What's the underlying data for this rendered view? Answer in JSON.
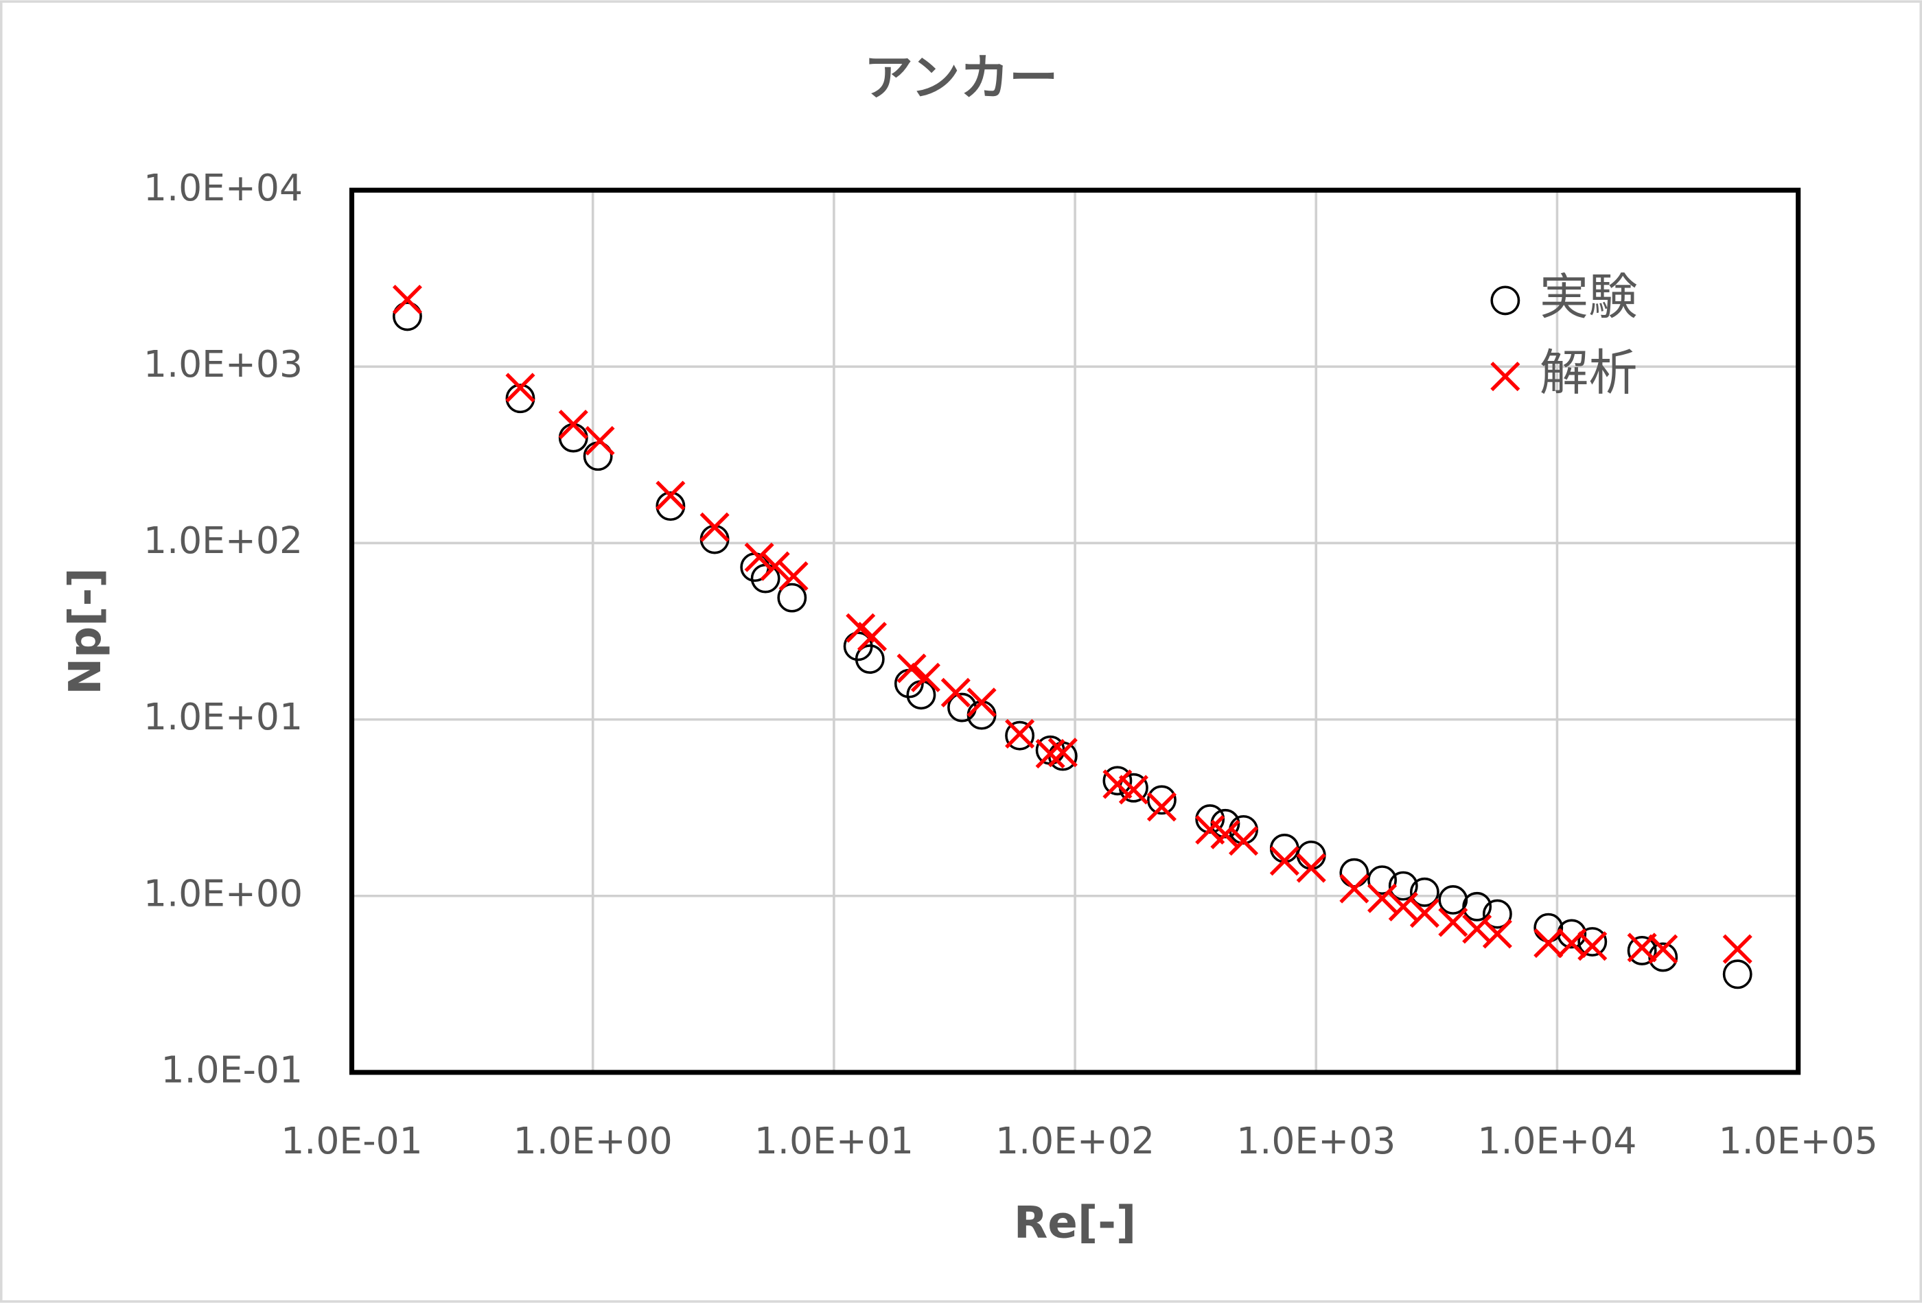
{
  "chart_data": {
    "type": "scatter",
    "title": "アンカー",
    "xlabel": "Re[-]",
    "ylabel": "Np[-]",
    "xscale": "log",
    "yscale": "log",
    "grid": true,
    "legend": "upper right",
    "xlim": [
      0.1,
      100000
    ],
    "ylim": [
      0.1,
      10000
    ],
    "xticks": [
      {
        "value": 0.1,
        "label": "1.0E-01"
      },
      {
        "value": 1,
        "label": "1.0E+00"
      },
      {
        "value": 10,
        "label": "1.0E+01"
      },
      {
        "value": 100,
        "label": "1.0E+02"
      },
      {
        "value": 1000,
        "label": "1.0E+03"
      },
      {
        "value": 10000,
        "label": "1.0E+04"
      },
      {
        "value": 100000,
        "label": "1.0E+05"
      }
    ],
    "yticks": [
      {
        "value": 0.1,
        "label": "1.0E-01"
      },
      {
        "value": 1,
        "label": "1.0E+00"
      },
      {
        "value": 10,
        "label": "1.0E+01"
      },
      {
        "value": 100,
        "label": "1.0E+02"
      },
      {
        "value": 1000,
        "label": "1.0E+03"
      },
      {
        "value": 10000,
        "label": "1.0E+04"
      }
    ],
    "series": [
      {
        "name": "実験",
        "marker": "circle",
        "color": "#000000",
        "x": [
          0.17,
          0.5,
          0.83,
          1.05,
          2.1,
          3.2,
          4.7,
          5.2,
          6.7,
          12.6,
          14.1,
          20.5,
          23,
          34,
          41,
          59,
          79,
          89,
          150,
          175,
          229,
          363,
          420,
          500,
          740,
          955,
          1440,
          1880,
          2300,
          2820,
          3700,
          4650,
          5650,
          9200,
          11500,
          14000,
          22500,
          27500,
          56000
        ],
        "values": [
          1930,
          660,
          395,
          311,
          162,
          105,
          73,
          63,
          49,
          26,
          22,
          16,
          13.8,
          11.7,
          10.6,
          8.1,
          6.7,
          6.2,
          4.5,
          4.1,
          3.5,
          2.73,
          2.57,
          2.37,
          1.86,
          1.7,
          1.35,
          1.23,
          1.14,
          1.05,
          0.95,
          0.87,
          0.79,
          0.66,
          0.61,
          0.55,
          0.49,
          0.45,
          0.36
        ]
      },
      {
        "name": "解析",
        "marker": "x",
        "color": "#ff0000",
        "x": [
          0.17,
          0.5,
          0.83,
          1.07,
          2.1,
          3.2,
          4.9,
          5.7,
          6.8,
          12.9,
          14.4,
          21,
          24,
          32,
          41,
          59,
          79,
          89,
          150,
          175,
          229,
          363,
          420,
          500,
          740,
          955,
          1440,
          1880,
          2300,
          2820,
          3700,
          4650,
          5650,
          9200,
          11500,
          14000,
          22500,
          27500,
          56000
        ],
        "values": [
          2400,
          760,
          470,
          380,
          186,
          123,
          83,
          74,
          65,
          33,
          29.5,
          19.5,
          17.3,
          14.2,
          12.5,
          8.3,
          6.4,
          6.5,
          4.3,
          4.0,
          3.2,
          2.37,
          2.23,
          2.05,
          1.58,
          1.44,
          1.1,
          0.97,
          0.87,
          0.8,
          0.71,
          0.65,
          0.61,
          0.54,
          0.54,
          0.52,
          0.51,
          0.5,
          0.5
        ]
      }
    ]
  }
}
